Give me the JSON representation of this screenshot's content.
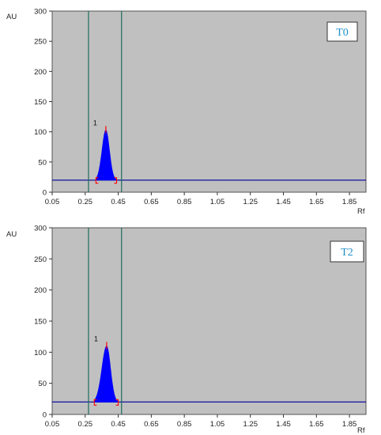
{
  "chart_data": [
    {
      "type": "line",
      "panel_label": "T0",
      "ylabel": "AU",
      "xlabel": "Rf",
      "xlim": [
        0.05,
        1.95
      ],
      "ylim": [
        0,
        300
      ],
      "xticks": [
        "0.05",
        "0.25",
        "0.45",
        "0.65",
        "0.85",
        "1.05",
        "1.25",
        "1.45",
        "1.65",
        "1.85"
      ],
      "yticks": [
        "0",
        "50",
        "100",
        "150",
        "200",
        "250",
        "300"
      ],
      "baseline": 20,
      "window_lines_rf": [
        0.27,
        0.47
      ],
      "peak": {
        "label": "1",
        "rf": 0.375,
        "height": 103,
        "start": 0.315,
        "end": 0.44
      },
      "colors": {
        "plot_bg": "#c0c0c0",
        "peak_fill": "#0000ff",
        "baseline": "#1010a0",
        "window_lines": "#1d6b5a",
        "marker": "#ff0000",
        "tag_text": "#1e8fc8"
      }
    },
    {
      "type": "line",
      "panel_label": "T2",
      "ylabel": "AU",
      "xlabel": "Rf",
      "xlim": [
        0.05,
        1.95
      ],
      "ylim": [
        0,
        300
      ],
      "xticks": [
        "0.05",
        "0.25",
        "0.45",
        "0.65",
        "0.85",
        "1.05",
        "1.25",
        "1.45",
        "1.65",
        "1.85"
      ],
      "yticks": [
        "0",
        "50",
        "100",
        "150",
        "200",
        "250",
        "300"
      ],
      "baseline": 20,
      "window_lines_rf": [
        0.27,
        0.47
      ],
      "peak": {
        "label": "1",
        "rf": 0.38,
        "height": 110,
        "start": 0.305,
        "end": 0.45
      },
      "colors": {
        "plot_bg": "#c0c0c0",
        "peak_fill": "#0000ff",
        "baseline": "#1010a0",
        "window_lines": "#1d6b5a",
        "marker": "#ff0000",
        "tag_text": "#1e8fc8"
      }
    }
  ]
}
